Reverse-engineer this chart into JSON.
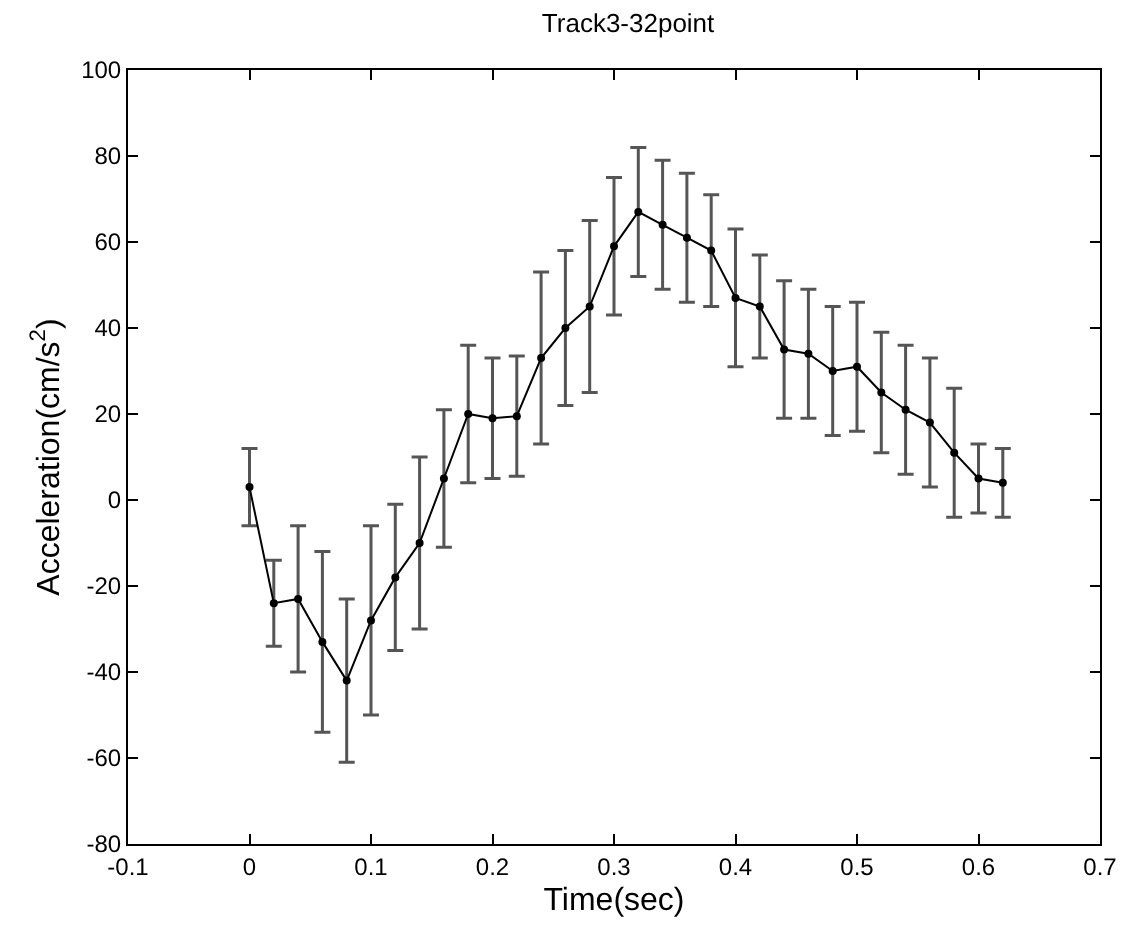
{
  "chart_data": {
    "type": "line",
    "title": "Track3-32point",
    "xlabel": "Time(sec)",
    "ylabel": "Acceleration(cm/s$^{2}$)",
    "x": [
      0,
      0.02,
      0.04,
      0.06,
      0.08,
      0.1,
      0.12,
      0.14,
      0.16,
      0.18,
      0.2,
      0.22,
      0.24,
      0.26,
      0.28,
      0.3,
      0.32,
      0.34,
      0.36,
      0.38,
      0.4,
      0.42,
      0.44,
      0.46,
      0.48,
      0.5,
      0.52,
      0.54,
      0.56,
      0.58,
      0.6,
      0.62
    ],
    "series": [
      {
        "color": "#000000",
        "values": [
          3,
          -24,
          -23,
          -33,
          -42,
          -28,
          -18,
          -10,
          5,
          20,
          19,
          19.5,
          33,
          40,
          45,
          59,
          67,
          64,
          61,
          58,
          47,
          45,
          35,
          34,
          30,
          31,
          25,
          21,
          18,
          11,
          5,
          4
        ],
        "errors": [
          9,
          10,
          17,
          21,
          19,
          22,
          17,
          20,
          16,
          16,
          14,
          14,
          20,
          18,
          20,
          16,
          15,
          15,
          15,
          13,
          16,
          12,
          16,
          15,
          15,
          15,
          14,
          15,
          15,
          15,
          8,
          8
        ]
      }
    ],
    "marker": "circle",
    "line_style": "solid",
    "xlim": [
      -0.1,
      0.7
    ],
    "xticks": [
      -0.1,
      0,
      0.1,
      0.2,
      0.3,
      0.4,
      0.5,
      0.6,
      0.7
    ],
    "ylim": [
      -80,
      100
    ],
    "yticks": [
      -80,
      -60,
      -40,
      -20,
      0,
      20,
      40,
      60,
      80,
      100
    ]
  }
}
